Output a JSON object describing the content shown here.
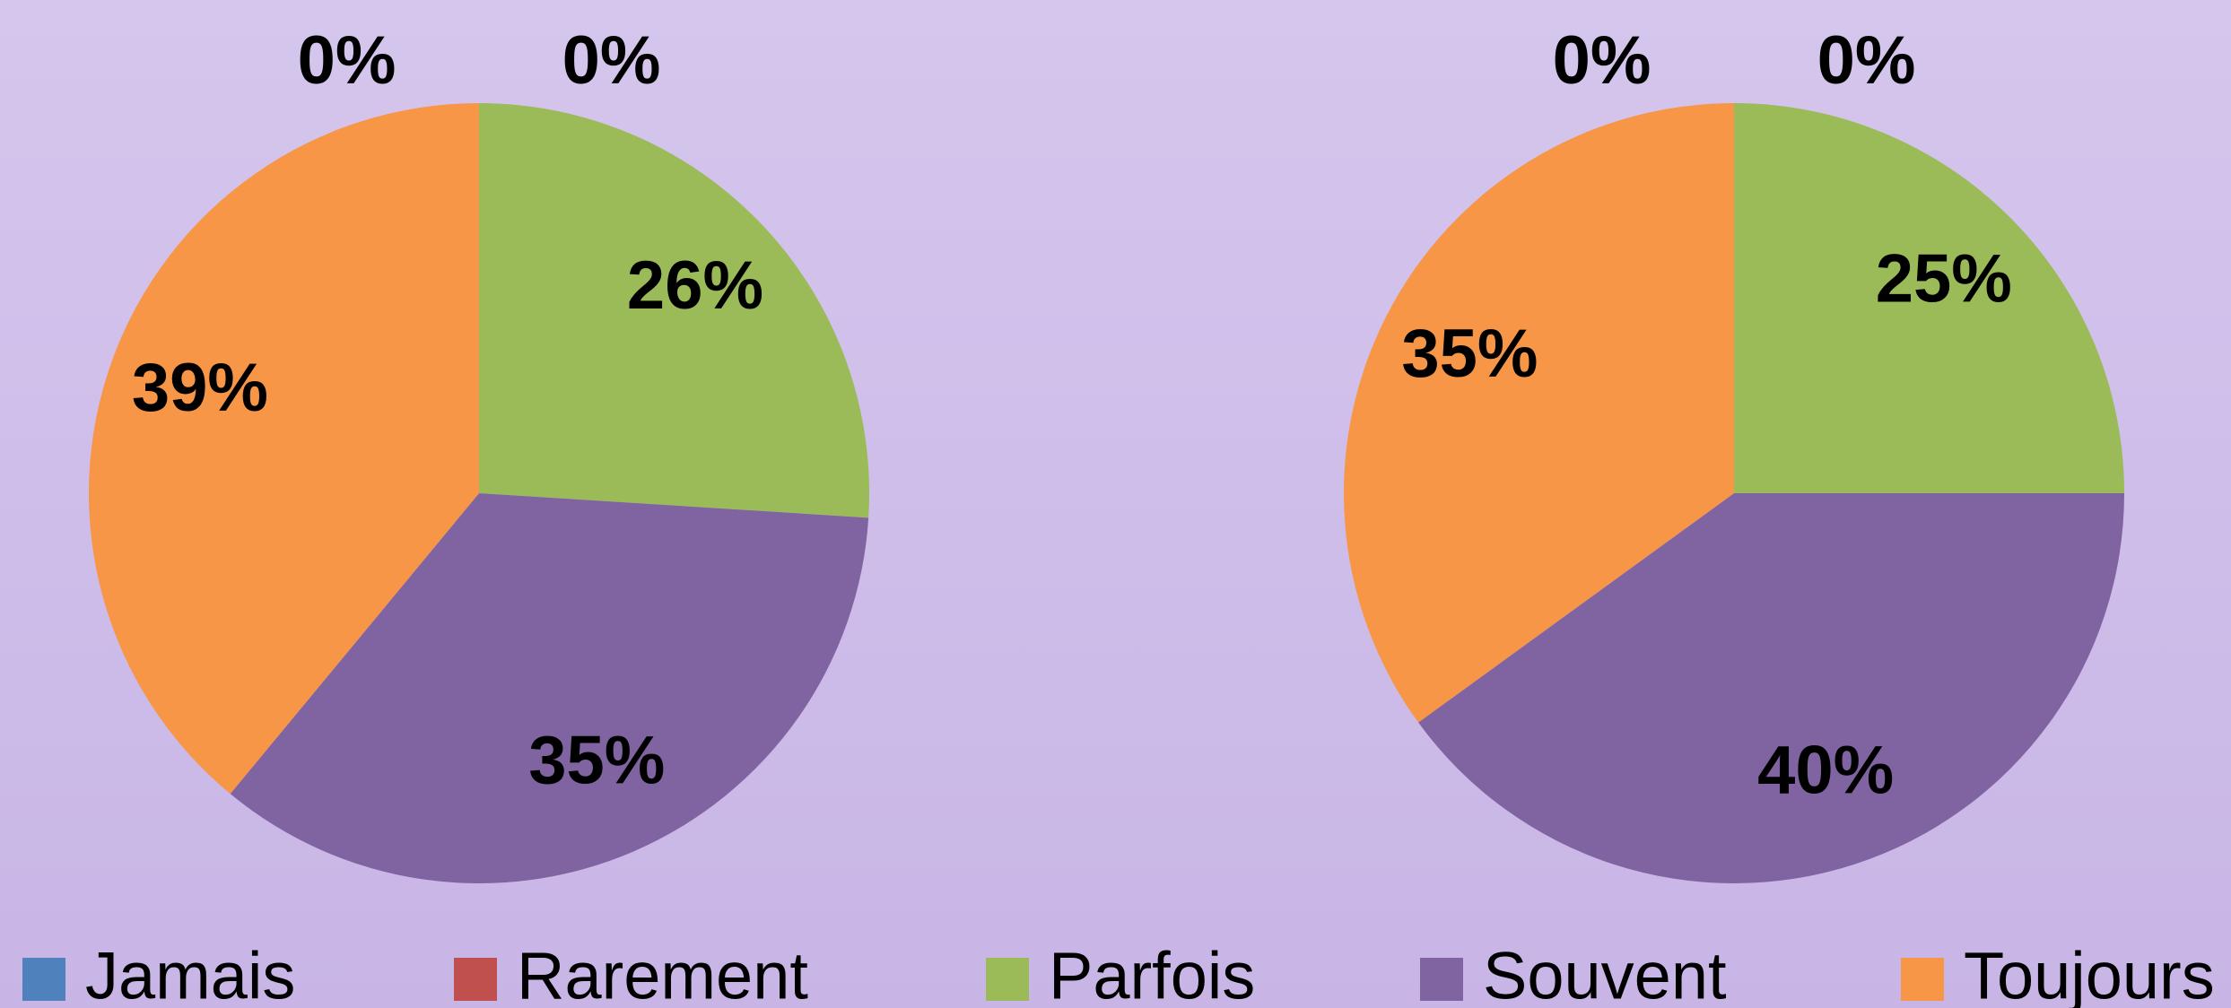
{
  "chart_data": [
    {
      "type": "pie",
      "categories": [
        "Jamais",
        "Rarement",
        "Parfois",
        "Souvent",
        "Toujours"
      ],
      "values": [
        0,
        0,
        26,
        35,
        39
      ],
      "value_labels": [
        "0%",
        "0%",
        "26%",
        "35%",
        "39%"
      ],
      "colors": [
        "#4f81bd",
        "#c0504d",
        "#9bbb59",
        "#8064a2",
        "#f79646"
      ],
      "legend": "bottom"
    },
    {
      "type": "pie",
      "categories": [
        "Jamais",
        "Rarement",
        "Parfois",
        "Souvent",
        "Toujours"
      ],
      "values": [
        0,
        0,
        25,
        40,
        35
      ],
      "value_labels": [
        "0%",
        "0%",
        "25%",
        "40%",
        "35%"
      ],
      "colors": [
        "#4f81bd",
        "#c0504d",
        "#9bbb59",
        "#8064a2",
        "#f79646"
      ]
    }
  ]
}
